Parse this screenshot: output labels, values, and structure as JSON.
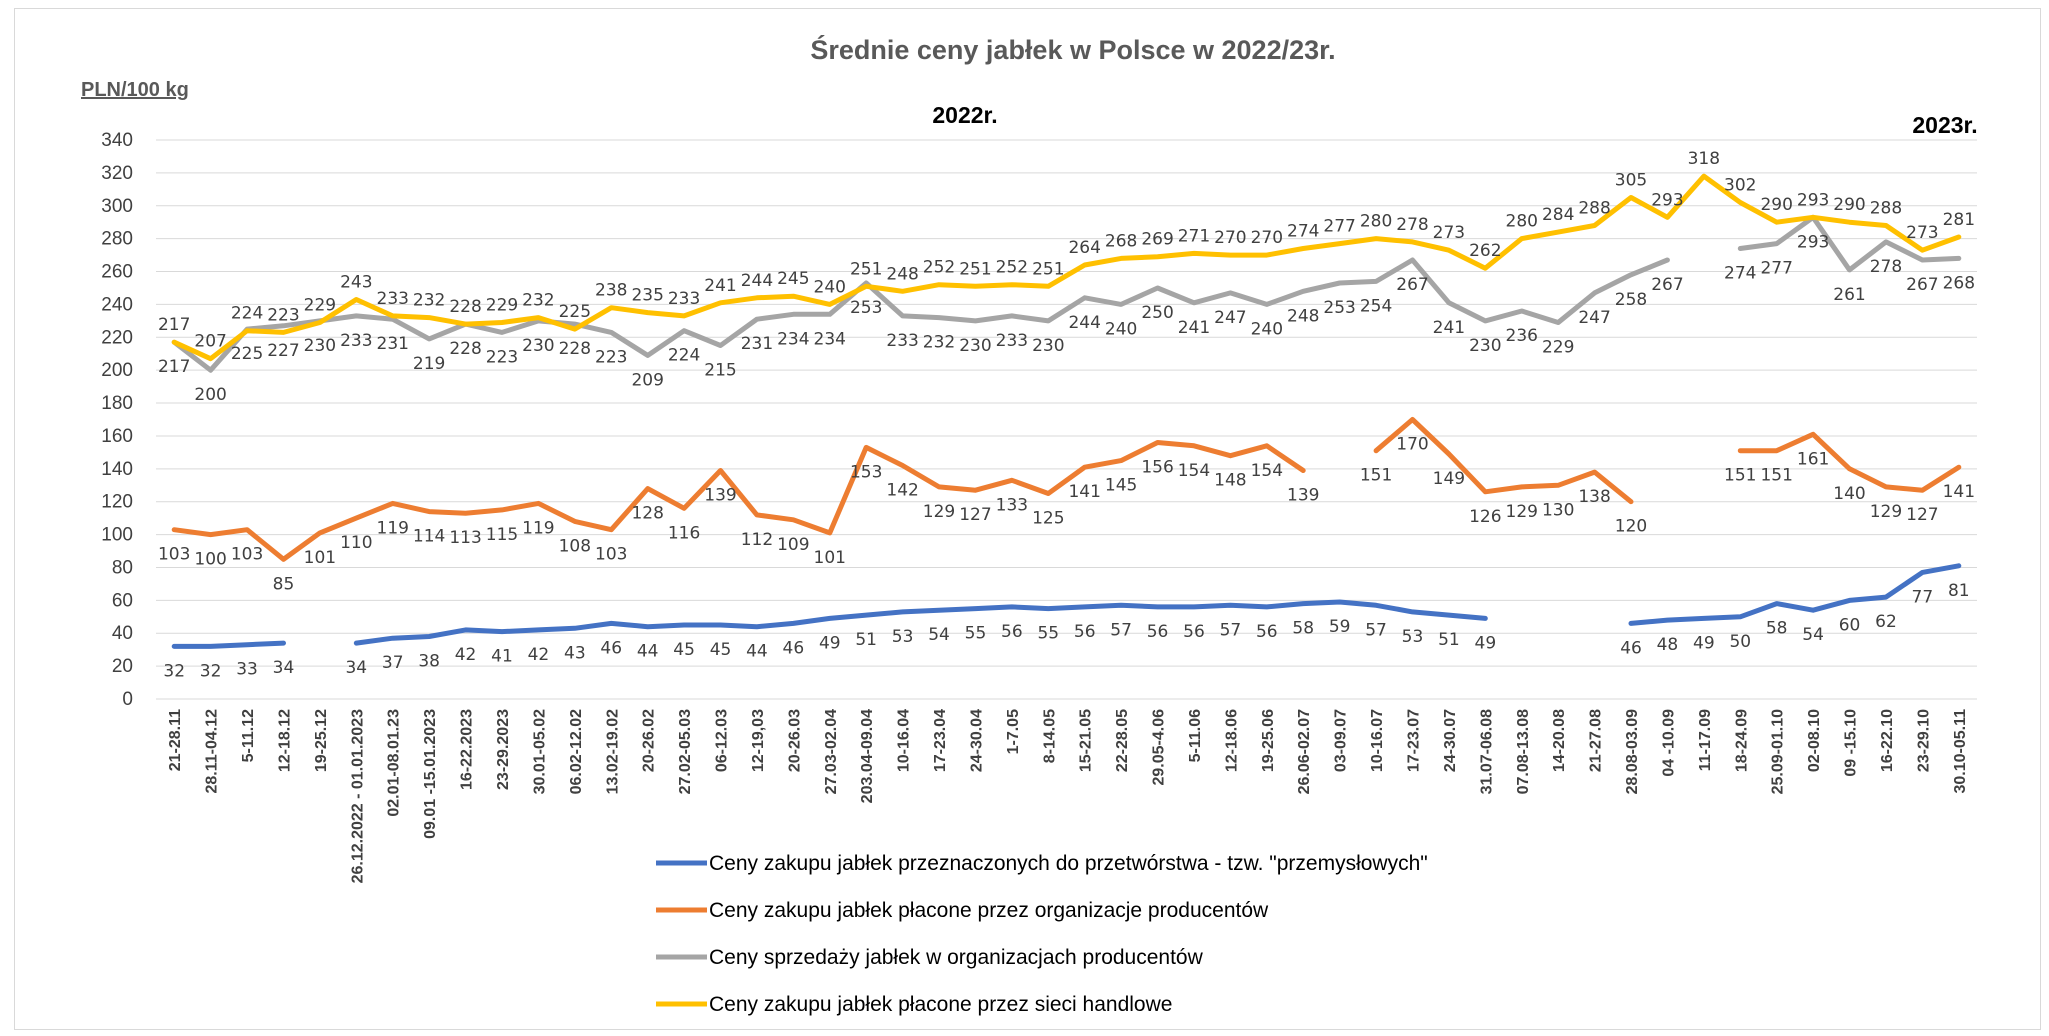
{
  "chart_data": {
    "type": "line",
    "title": "Średnie ceny jabłek w Polsce w 2022/23r.",
    "ylabel": "PLN/100 kg",
    "annotations": [
      "2022r.",
      "2023r."
    ],
    "ylim": [
      0,
      340
    ],
    "yticks": [
      0,
      20,
      40,
      60,
      80,
      100,
      120,
      140,
      160,
      180,
      200,
      220,
      240,
      260,
      280,
      300,
      320,
      340
    ],
    "grid": true,
    "legend_position": "bottom",
    "categories": [
      "21-28.11",
      "28.11-04.12",
      "5-11.12",
      "12-18.12",
      "19-25.12",
      "26.12.2022 - 01.01.2023",
      "02.01-08.01.23",
      "09.01 -15.01.2023",
      "16-22.2023",
      "23-29.2023",
      "30.01-05.02",
      "06.02-12.02",
      "13.02-19.02",
      "20-26.02",
      "27.02-05.03",
      "06-12.03",
      "12-19,03",
      "20-26.03",
      "27.03-02.04",
      "203.04-09.04",
      "10-16.04",
      "17-23.04",
      "24-30.04",
      "1-7.05",
      "8-14.05",
      "15-21.05",
      "22-28.05",
      "29.05-4.06",
      "5-11.06",
      "12-18.06",
      "19-25.06",
      "26.06-02.07",
      "03-09.07",
      "10-16.07",
      "17-23.07",
      "24-30.07",
      "31.07-06.08",
      "07.08-13.08",
      "14-20.08",
      "21-27.08",
      "28.08-03.09",
      "04 -10.09",
      "11-17.09",
      "18-24.09",
      "25.09-01.10",
      "02-08.10",
      "09 -15.10",
      "16-22.10",
      "23-29.10",
      "30.10-05.11"
    ],
    "series": [
      {
        "name": "Ceny zakupu jabłek przeznaczonych do przetwórstwa - tzw. \"przemysłowych\"",
        "color": "#4472c4",
        "values": [
          32,
          32,
          33,
          34,
          null,
          34,
          37,
          38,
          42,
          41,
          42,
          43,
          46,
          44,
          45,
          45,
          44,
          46,
          49,
          51,
          53,
          54,
          55,
          56,
          55,
          56,
          57,
          56,
          56,
          57,
          56,
          58,
          59,
          57,
          53,
          51,
          49,
          null,
          null,
          null,
          46,
          48,
          49,
          50,
          58,
          54,
          60,
          62,
          77,
          81
        ]
      },
      {
        "name": "Ceny zakupu jabłek płacone przez organizacje  producentów",
        "color": "#ed7d31",
        "values": [
          103,
          100,
          103,
          85,
          101,
          110,
          119,
          114,
          113,
          115,
          119,
          108,
          103,
          128,
          116,
          139,
          112,
          109,
          101,
          153,
          142,
          129,
          127,
          133,
          125,
          141,
          145,
          156,
          154,
          148,
          154,
          139,
          null,
          151,
          170,
          149,
          126,
          129,
          130,
          138,
          120,
          null,
          null,
          151,
          151,
          161,
          140,
          129,
          127,
          141
        ]
      },
      {
        "name": "Ceny sprzedaży jabłek w organizacjach  producentów",
        "color": "#a5a5a5",
        "values": [
          217,
          200,
          225,
          227,
          230,
          233,
          231,
          219,
          228,
          223,
          230,
          228,
          223,
          209,
          224,
          215,
          231,
          234,
          234,
          253,
          233,
          232,
          230,
          233,
          230,
          244,
          240,
          250,
          241,
          247,
          240,
          248,
          253,
          254,
          267,
          241,
          230,
          236,
          229,
          247,
          258,
          267,
          null,
          274,
          277,
          293,
          261,
          278,
          267,
          268
        ]
      },
      {
        "name": "Ceny zakupu jabłek płacone przez sieci handlowe",
        "color": "#ffc000",
        "values": [
          217,
          207,
          224,
          223,
          229,
          243,
          233,
          232,
          228,
          229,
          232,
          225,
          238,
          235,
          233,
          241,
          244,
          245,
          240,
          251,
          248,
          252,
          251,
          252,
          251,
          264,
          268,
          269,
          271,
          270,
          270,
          274,
          277,
          280,
          278,
          273,
          262,
          280,
          284,
          288,
          305,
          293,
          318,
          302,
          290,
          293,
          290,
          288,
          273,
          281
        ]
      }
    ]
  }
}
